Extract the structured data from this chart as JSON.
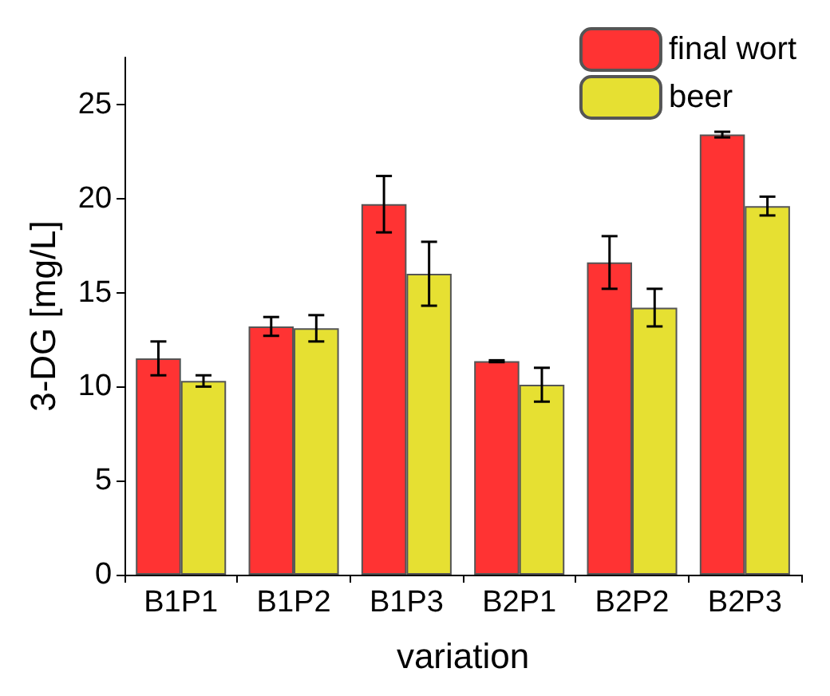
{
  "chart_data": {
    "type": "bar",
    "xlabel": "variation",
    "ylabel": "3-DG [mg/L]",
    "categories": [
      "B1P1",
      "B1P2",
      "B1P3",
      "B2P1",
      "B2P2",
      "B2P3"
    ],
    "series": [
      {
        "name": "final wort",
        "color": "#ff3333",
        "values": [
          11.5,
          13.2,
          19.7,
          11.35,
          16.6,
          23.4
        ],
        "errors": [
          0.9,
          0.5,
          1.5,
          0.05,
          1.4,
          0.15
        ]
      },
      {
        "name": "beer",
        "color": "#e6e032",
        "values": [
          10.3,
          13.1,
          16.0,
          10.1,
          14.2,
          19.6
        ],
        "errors": [
          0.3,
          0.7,
          1.7,
          0.9,
          1.0,
          0.5
        ]
      }
    ],
    "ylim": [
      0,
      27.5
    ],
    "yticks": [
      0,
      5,
      10,
      15,
      20,
      25
    ],
    "grid": false,
    "legend": "top right"
  }
}
